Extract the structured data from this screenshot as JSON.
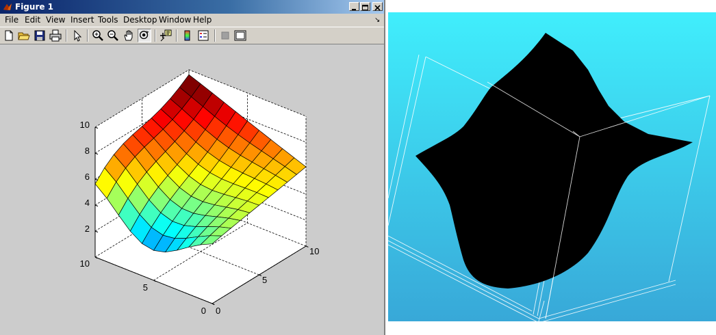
{
  "window": {
    "title": "Figure 1",
    "buttons": [
      "minimize-button",
      "maximize-button",
      "close-button"
    ]
  },
  "menu": [
    "File",
    "Edit",
    "View",
    "Insert",
    "Tools",
    "Desktop",
    "Window",
    "Help"
  ],
  "menu_overflow_arrow": "↘",
  "toolbar": {
    "icons": [
      "new-file-icon",
      "open-folder-icon",
      "save-icon",
      "print-icon",
      "arrow-select-icon",
      "zoom-in-icon",
      "zoom-out-icon",
      "pan-hand-icon",
      "rotate-3d-icon",
      "data-cursor-icon",
      "colorbar-icon",
      "legend-icon",
      "hide-plot-tools-icon",
      "show-plot-tools-icon"
    ]
  },
  "chart_data": {
    "type": "surface",
    "x": [
      0,
      1,
      2,
      3,
      4,
      5,
      6,
      7,
      8,
      9,
      10
    ],
    "y": [
      0,
      1,
      2,
      3,
      4,
      5,
      6,
      7,
      8,
      9,
      10
    ],
    "z_range": [
      0,
      10
    ],
    "colormap": "jet",
    "z_ticks": [
      "2",
      "4",
      "6",
      "8",
      "10"
    ],
    "y_ticks": [
      "0",
      "5",
      "10"
    ],
    "x_ticks": [
      "0",
      "5",
      "10"
    ],
    "grid": true
  },
  "render_panel": {
    "background_top": "#40eefc",
    "background_bottom": "#38a8d8",
    "shape_color": "#000000"
  }
}
